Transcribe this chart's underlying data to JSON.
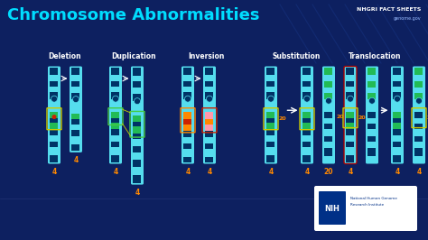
{
  "bg_color": "#0d2060",
  "title": "Chromosome Abnormalities",
  "title_color": "#00ddff",
  "title_fontsize": 13,
  "nhgri_text": "NHGRI FACT SHEETS",
  "genome_text": "genome.gov",
  "section_labels": [
    "Deletion",
    "Duplication",
    "Inversion",
    "Substitution",
    "Translocation"
  ],
  "lc": "#55ddee",
  "dc": "#003366",
  "gc": "#22bb55",
  "orange": "#ff8800",
  "red": "#cc2200",
  "pink": "#ff99aa",
  "yellow_outline": "#cccc00",
  "green_outline": "#44cc44",
  "red_outline": "#aa0000",
  "number_color": "#ff8800"
}
